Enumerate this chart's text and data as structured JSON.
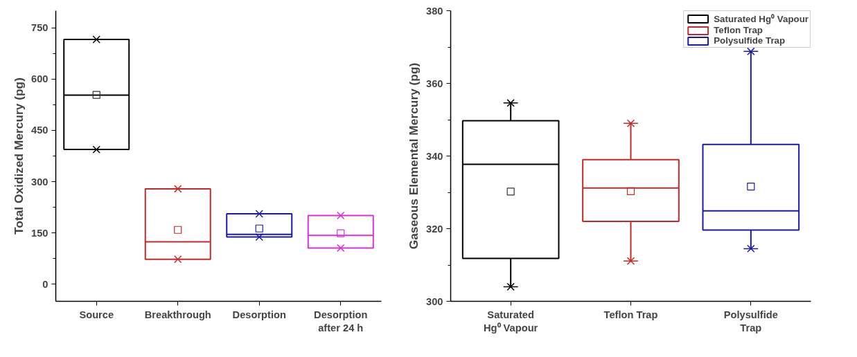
{
  "chart_data": [
    {
      "type": "box",
      "ylabel": "Total Oxidized Mercury (pg)",
      "categories": [
        "Source",
        "Breakthrough",
        "Desorption",
        "Desorption after 24 h"
      ],
      "colors": [
        "#000000",
        "#c62828",
        "#1a1aa6",
        "#d633d6"
      ],
      "boxes": [
        {
          "low": 394,
          "q1": 394,
          "median": 553,
          "q3": 716,
          "high": 716,
          "mean": 554,
          "outliers": [
            394,
            716
          ]
        },
        {
          "low": 73,
          "q1": 73,
          "median": 124,
          "q3": 279,
          "high": 279,
          "mean": 159,
          "outliers": [
            73,
            279
          ]
        },
        {
          "low": 138,
          "q1": 138,
          "median": 146,
          "q3": 206,
          "high": 206,
          "mean": 163,
          "outliers": [
            138,
            206
          ]
        },
        {
          "low": 106,
          "q1": 106,
          "median": 143,
          "q3": 201,
          "high": 201,
          "mean": 149,
          "outliers": [
            106,
            201
          ]
        }
      ],
      "ylim": [
        -50,
        800
      ],
      "yticks": [
        0,
        150,
        300,
        450,
        600,
        750
      ],
      "grid": false,
      "legend": false
    },
    {
      "type": "box",
      "ylabel": "Gaseous Elemental Mercury (pg)",
      "categories": [
        "Saturated Hg⁰ Vapour",
        "Teflon Trap",
        "Polysulfide Trap"
      ],
      "series": [
        {
          "name": "Saturated Hg⁰ Vapour",
          "color": "#000000",
          "boxes": [
            {
              "low": 304.0,
              "q1": 311.8,
              "median": 337.7,
              "q3": 349.7,
              "high": 354.6,
              "mean": 330.2,
              "outliers": [
                304.0,
                354.6
              ]
            },
            null,
            null
          ]
        },
        {
          "name": "Teflon Trap",
          "color": "#c62828",
          "boxes": [
            null,
            {
              "low": 311.1,
              "q1": 322.0,
              "median": 331.2,
              "q3": 339.0,
              "high": 349.0,
              "mean": 330.3,
              "outliers": [
                311.1,
                349.0
              ]
            },
            null
          ]
        },
        {
          "name": "Polysulfide Trap",
          "color": "#1a1aa6",
          "boxes": [
            null,
            null,
            {
              "low": 314.5,
              "q1": 319.6,
              "median": 324.9,
              "q3": 343.2,
              "high": 368.8,
              "mean": 331.6,
              "outliers": [
                314.5,
                368.8
              ]
            }
          ]
        }
      ],
      "ylim": [
        300,
        380
      ],
      "yticks": [
        300,
        320,
        340,
        360,
        380
      ],
      "grid": false,
      "legend": "top right"
    }
  ]
}
